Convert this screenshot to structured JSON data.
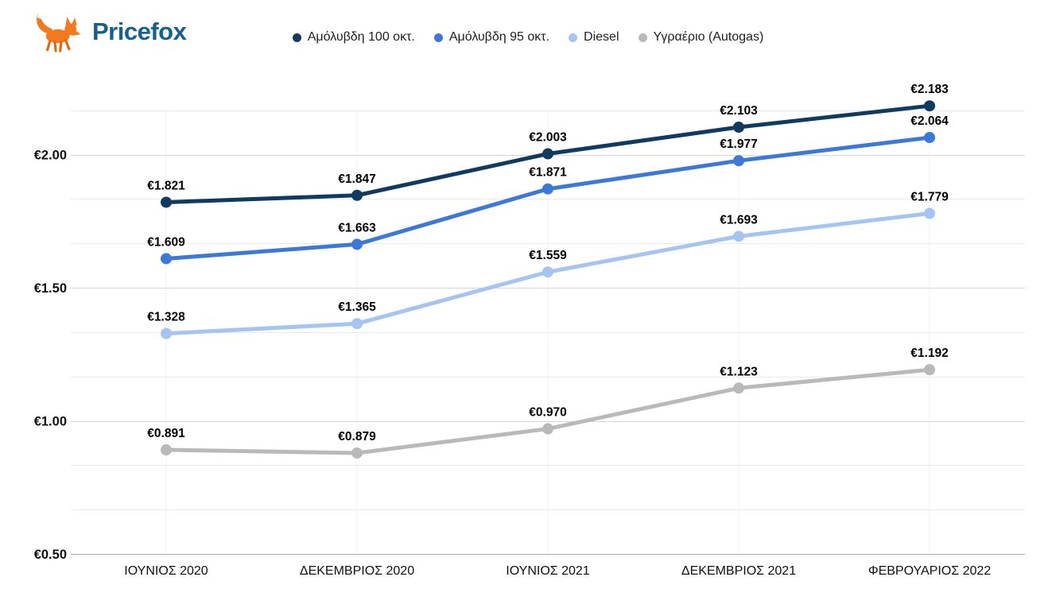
{
  "brand": {
    "name": "Pricefox",
    "text_color": "#15608f",
    "fox_color": "#f4791f",
    "fox_accent_color": "#e2660f"
  },
  "chart_data": {
    "type": "line",
    "title": "",
    "categories": [
      "ΙΟΥΝΙΟΣ 2020",
      "ΔΕΚΕΜΒΡΙΟΣ 2020",
      "ΙΟΥΝΙΟΣ 2021",
      "ΔΕΚΕΜΒΡΙΟΣ 2021",
      "ΦΕΒΡΟΥΑΡΙΟΣ 2022"
    ],
    "series": [
      {
        "name": "Αμόλυβδη 100 οκτ.",
        "color": "#103a60",
        "values": [
          1.821,
          1.847,
          2.003,
          2.103,
          2.183
        ],
        "labels": [
          "€1.821",
          "€1.847",
          "€2.003",
          "€2.103",
          "€2.183"
        ]
      },
      {
        "name": "Αμόλυβδη 95 οκτ.",
        "color": "#3b78d8",
        "values": [
          1.609,
          1.663,
          1.871,
          1.977,
          2.064
        ],
        "labels": [
          "€1.609",
          "€1.663",
          "€1.871",
          "€1.977",
          "€2.064"
        ]
      },
      {
        "name": "Diesel",
        "color": "#a5c4f2",
        "values": [
          1.328,
          1.365,
          1.559,
          1.693,
          1.779
        ],
        "labels": [
          "€1.328",
          "€1.365",
          "€1.559",
          "€1.693",
          "€1.779"
        ]
      },
      {
        "name": "Υγραέριο (Autogas)",
        "color": "#b9b9b9",
        "values": [
          0.891,
          0.879,
          0.97,
          1.123,
          1.192
        ],
        "labels": [
          "€0.891",
          "€0.879",
          "€0.970",
          "€1.123",
          "€1.192"
        ]
      }
    ],
    "y_ticks": [
      {
        "value": 0.5,
        "label": "€0.50"
      },
      {
        "value": 1.0,
        "label": "€1.00"
      },
      {
        "value": 1.5,
        "label": "€1.50"
      },
      {
        "value": 2.0,
        "label": "€2.00"
      }
    ],
    "ylim": [
      0.5,
      2.1667
    ],
    "minor_gridline_step": 0.1667,
    "gridlines_per_major": 3,
    "grid": true,
    "legend_position": "top",
    "data_labels": true,
    "currency_prefix": "€",
    "colors": {
      "major_gridline": "#d7d7d7",
      "minor_gridline": "#eaeaea",
      "vertical_gridline": "#f2f2f2",
      "axis_line": "#a9a9a9",
      "data_label_text": "#000000",
      "axis_label_text": "#111111"
    }
  }
}
